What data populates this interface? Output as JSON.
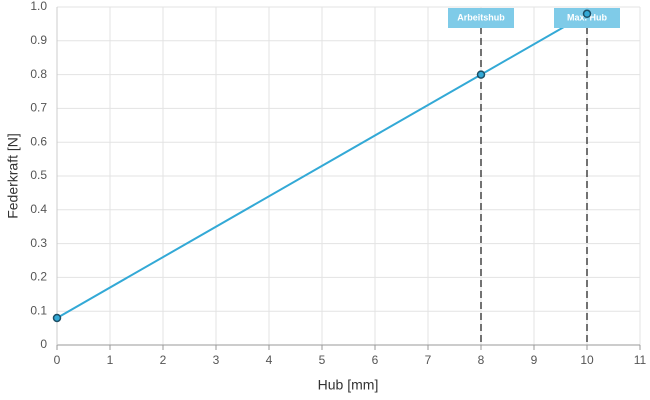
{
  "chart_data": {
    "type": "line",
    "xlabel": "Hub [mm]",
    "ylabel": "Federkraft [N]",
    "x": [
      0,
      8,
      10
    ],
    "series": [
      {
        "name": "Federkraft",
        "color": "#33a9d6",
        "values": [
          0.08,
          0.8,
          0.98
        ]
      }
    ],
    "xlim": [
      0,
      11
    ],
    "xticks": [
      0,
      1,
      2,
      3,
      4,
      5,
      6,
      7,
      8,
      9,
      10,
      11
    ],
    "ylim": [
      0,
      1
    ],
    "yticks": [
      0,
      0.1,
      0.2,
      0.3,
      0.4,
      0.5,
      0.6,
      0.7,
      0.8,
      0.9,
      {
        "value": 1,
        "label": "1.0"
      }
    ],
    "grid": true,
    "annotations": [
      {
        "x": 8,
        "label": "Arbeitshub"
      },
      {
        "x": 10,
        "label": "Max. Hub"
      }
    ]
  }
}
